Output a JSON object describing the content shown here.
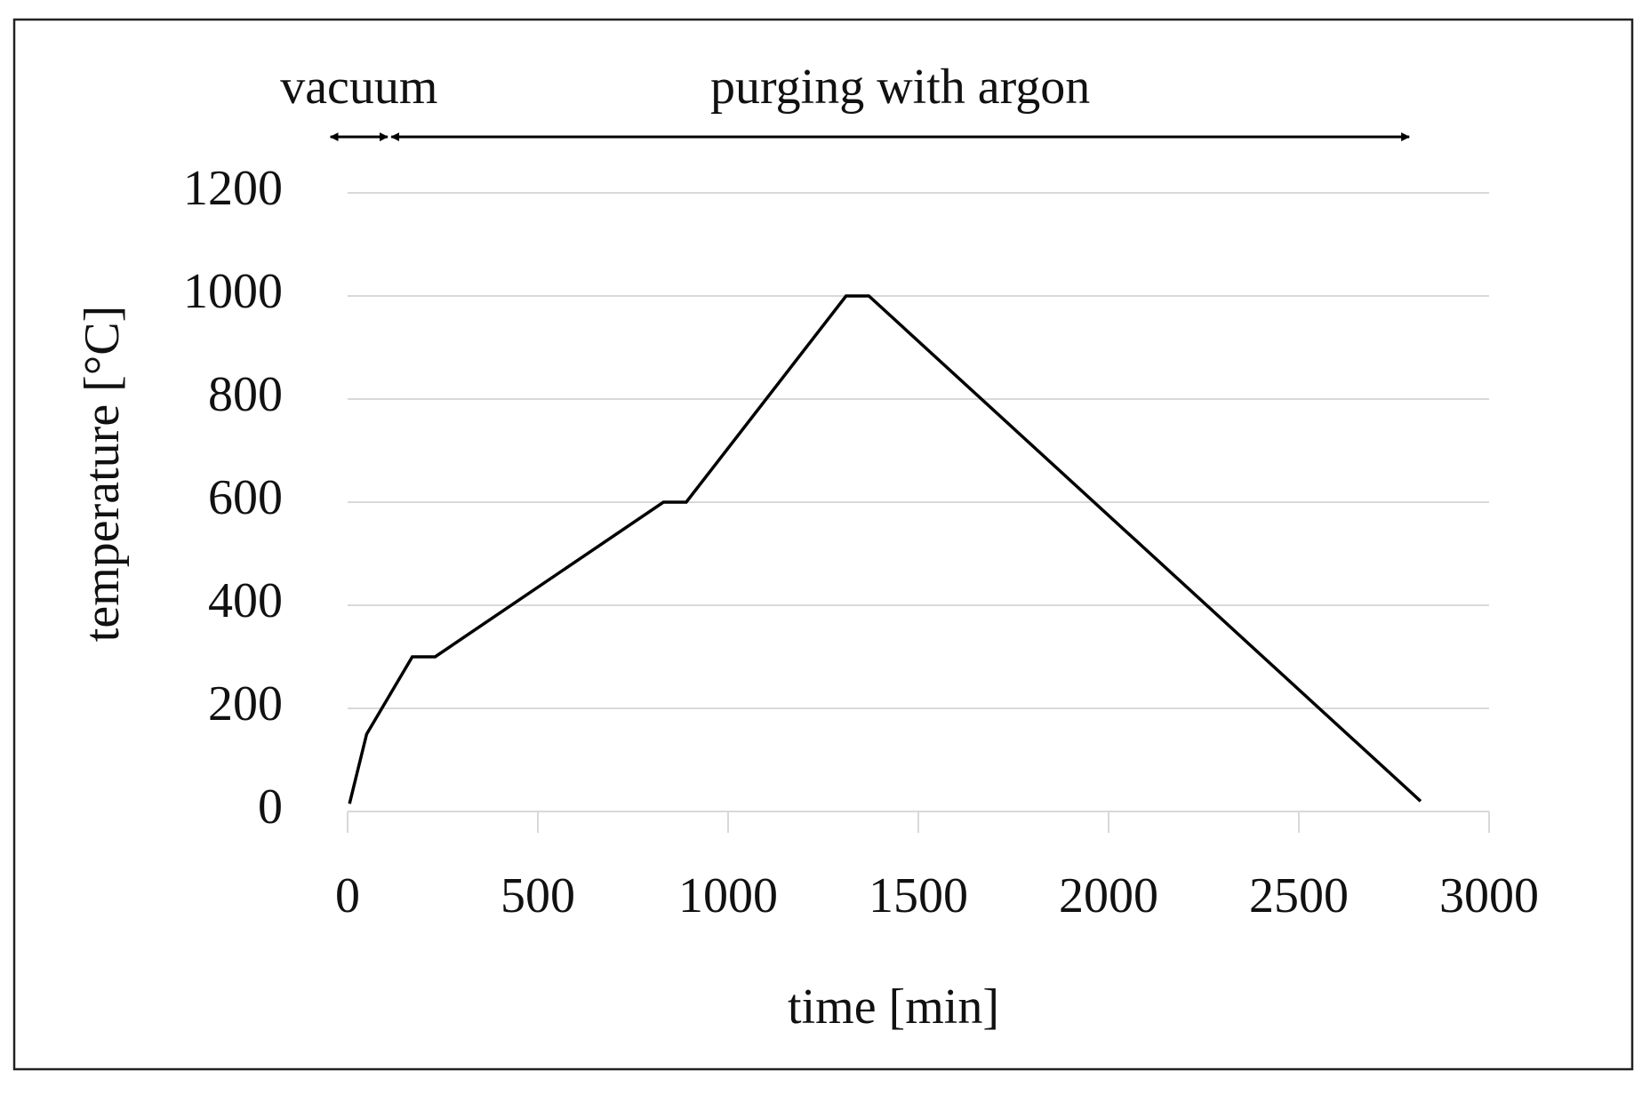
{
  "chart_data": {
    "type": "line",
    "x_label": "time [min]",
    "y_label": "temperature [°C]",
    "x": [
      5,
      50,
      170,
      230,
      830,
      890,
      1310,
      1370,
      2820
    ],
    "values": [
      15,
      150,
      300,
      300,
      600,
      600,
      1000,
      1000,
      20
    ],
    "color": "#000000",
    "xlim": [
      0,
      3000
    ],
    "xticks": [
      0,
      500,
      1000,
      1500,
      2000,
      2500,
      3000
    ],
    "ylim": [
      0,
      1200
    ],
    "yticks": [
      0,
      200,
      400,
      600,
      800,
      1000,
      1200
    ],
    "grid": true,
    "annotations": [
      {
        "text": "vacuum",
        "x_range": [
          -45,
          105
        ]
      },
      {
        "text": "purging with argon",
        "x_range": [
          115,
          2790
        ]
      }
    ]
  }
}
